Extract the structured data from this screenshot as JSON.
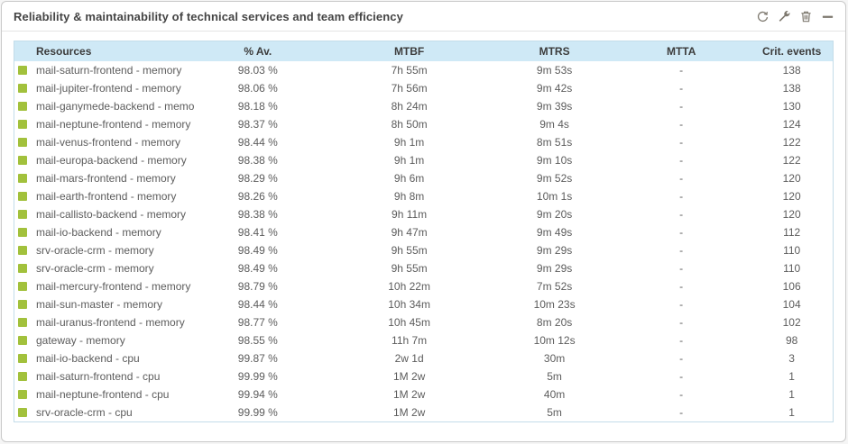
{
  "widget": {
    "title": "Reliability & maintainability of technical services and team efficiency",
    "toolbar": {
      "icons": [
        "refresh-icon",
        "wrench-icon",
        "trash-icon",
        "minimize-icon"
      ]
    }
  },
  "colors": {
    "status_green": "#a2c13c",
    "header_bg": "#cfe9f6",
    "table_border": "#c3dce9",
    "icon_gray": "#7d786e"
  },
  "table": {
    "columns": [
      "Resources",
      "% Av.",
      "MTBF",
      "MTRS",
      "MTTA",
      "Crit. events"
    ],
    "rows": [
      {
        "status": "green",
        "resource": "mail-saturn-frontend - memory",
        "availability": "98.03 %",
        "mtbf": "7h 55m",
        "mtrs": "9m 53s",
        "mtta": "-",
        "crit_events": "138"
      },
      {
        "status": "green",
        "resource": "mail-jupiter-frontend - memory",
        "availability": "98.06 %",
        "mtbf": "7h 56m",
        "mtrs": "9m 42s",
        "mtta": "-",
        "crit_events": "138"
      },
      {
        "status": "green",
        "resource": "mail-ganymede-backend - memory",
        "availability": "98.18 %",
        "mtbf": "8h 24m",
        "mtrs": "9m 39s",
        "mtta": "-",
        "crit_events": "130"
      },
      {
        "status": "green",
        "resource": "mail-neptune-frontend - memory",
        "availability": "98.37 %",
        "mtbf": "8h 50m",
        "mtrs": "9m 4s",
        "mtta": "-",
        "crit_events": "124"
      },
      {
        "status": "green",
        "resource": "mail-venus-frontend - memory",
        "availability": "98.44 %",
        "mtbf": "9h 1m",
        "mtrs": "8m 51s",
        "mtta": "-",
        "crit_events": "122"
      },
      {
        "status": "green",
        "resource": "mail-europa-backend - memory",
        "availability": "98.38 %",
        "mtbf": "9h 1m",
        "mtrs": "9m 10s",
        "mtta": "-",
        "crit_events": "122"
      },
      {
        "status": "green",
        "resource": "mail-mars-frontend - memory",
        "availability": "98.29 %",
        "mtbf": "9h 6m",
        "mtrs": "9m 52s",
        "mtta": "-",
        "crit_events": "120"
      },
      {
        "status": "green",
        "resource": "mail-earth-frontend - memory",
        "availability": "98.26 %",
        "mtbf": "9h 8m",
        "mtrs": "10m 1s",
        "mtta": "-",
        "crit_events": "120"
      },
      {
        "status": "green",
        "resource": "mail-callisto-backend - memory",
        "availability": "98.38 %",
        "mtbf": "9h 11m",
        "mtrs": "9m 20s",
        "mtta": "-",
        "crit_events": "120"
      },
      {
        "status": "green",
        "resource": "mail-io-backend - memory",
        "availability": "98.41 %",
        "mtbf": "9h 47m",
        "mtrs": "9m 49s",
        "mtta": "-",
        "crit_events": "112"
      },
      {
        "status": "green",
        "resource": "srv-oracle-crm - memory",
        "availability": "98.49 %",
        "mtbf": "9h 55m",
        "mtrs": "9m 29s",
        "mtta": "-",
        "crit_events": "110"
      },
      {
        "status": "green",
        "resource": "srv-oracle-crm - memory",
        "availability": "98.49 %",
        "mtbf": "9h 55m",
        "mtrs": "9m 29s",
        "mtta": "-",
        "crit_events": "110"
      },
      {
        "status": "green",
        "resource": "mail-mercury-frontend - memory",
        "availability": "98.79 %",
        "mtbf": "10h 22m",
        "mtrs": "7m 52s",
        "mtta": "-",
        "crit_events": "106"
      },
      {
        "status": "green",
        "resource": "mail-sun-master - memory",
        "availability": "98.44 %",
        "mtbf": "10h 34m",
        "mtrs": "10m 23s",
        "mtta": "-",
        "crit_events": "104"
      },
      {
        "status": "green",
        "resource": "mail-uranus-frontend - memory",
        "availability": "98.77 %",
        "mtbf": "10h 45m",
        "mtrs": "8m 20s",
        "mtta": "-",
        "crit_events": "102"
      },
      {
        "status": "green",
        "resource": "gateway - memory",
        "availability": "98.55 %",
        "mtbf": "11h 7m",
        "mtrs": "10m 12s",
        "mtta": "-",
        "crit_events": "98"
      },
      {
        "status": "green",
        "resource": "mail-io-backend - cpu",
        "availability": "99.87 %",
        "mtbf": "2w 1d",
        "mtrs": "30m",
        "mtta": "-",
        "crit_events": "3"
      },
      {
        "status": "green",
        "resource": "mail-saturn-frontend - cpu",
        "availability": "99.99 %",
        "mtbf": "1M 2w",
        "mtrs": "5m",
        "mtta": "-",
        "crit_events": "1"
      },
      {
        "status": "green",
        "resource": "mail-neptune-frontend - cpu",
        "availability": "99.94 %",
        "mtbf": "1M 2w",
        "mtrs": "40m",
        "mtta": "-",
        "crit_events": "1"
      },
      {
        "status": "green",
        "resource": "srv-oracle-crm - cpu",
        "availability": "99.99 %",
        "mtbf": "1M 2w",
        "mtrs": "5m",
        "mtta": "-",
        "crit_events": "1"
      }
    ]
  }
}
